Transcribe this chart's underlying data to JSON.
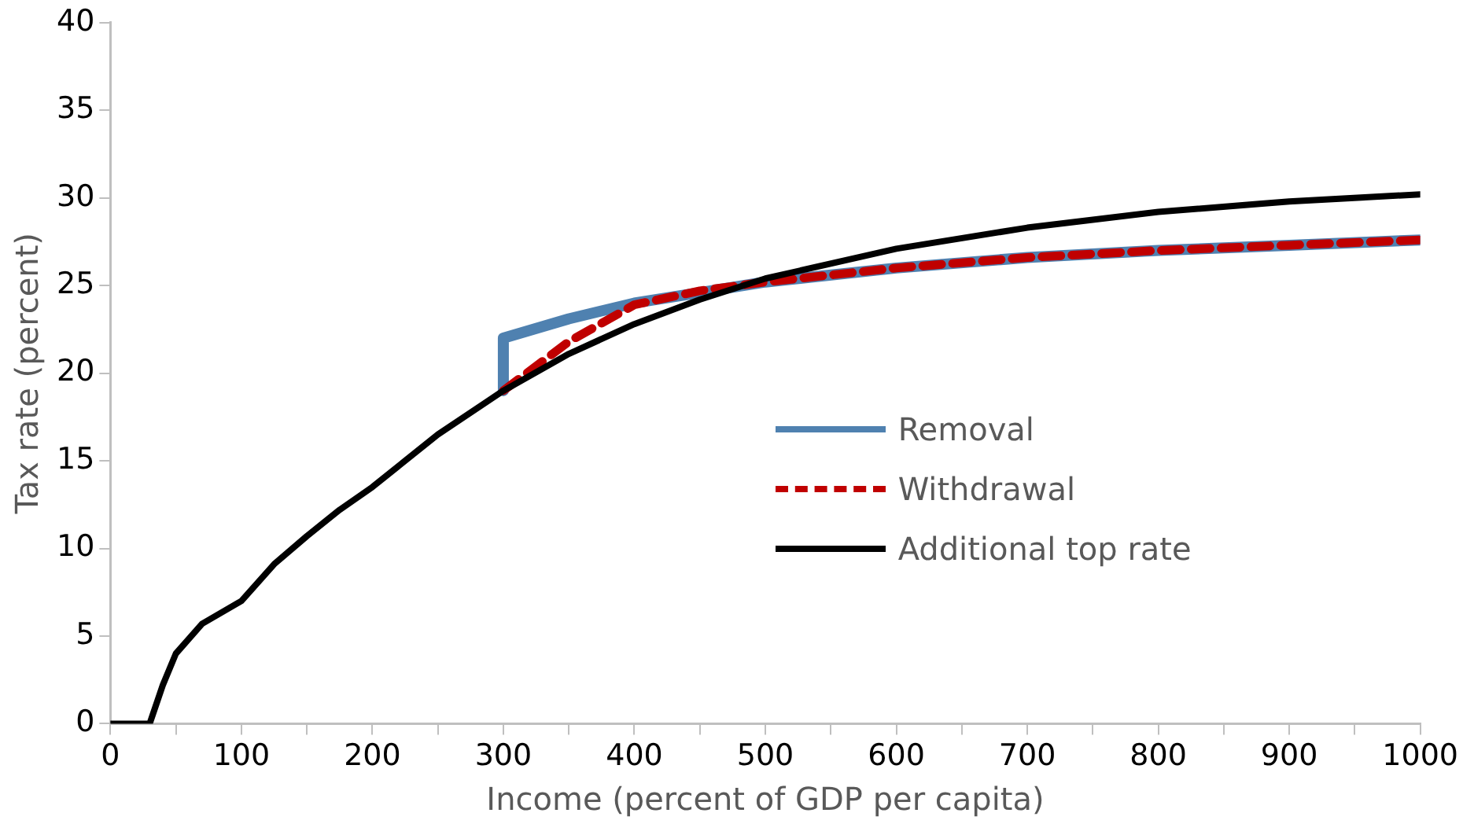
{
  "chart_data": {
    "type": "line",
    "xlabel": "Income (percent of GDP per capita)",
    "ylabel": "Tax rate (percent)",
    "xlim": [
      0,
      1000
    ],
    "xticks": [
      0,
      {
        "value": 50,
        "label": null
      },
      100,
      {
        "value": 150,
        "label": null
      },
      200,
      {
        "value": 250,
        "label": null
      },
      300,
      {
        "value": 350,
        "label": null
      },
      400,
      {
        "value": 450,
        "label": null
      },
      500,
      {
        "value": 550,
        "label": null
      },
      600,
      {
        "value": 650,
        "label": null
      },
      700,
      {
        "value": 750,
        "label": null
      },
      800,
      {
        "value": 850,
        "label": null
      },
      900,
      {
        "value": 950,
        "label": null
      },
      1000
    ],
    "ylim": [
      0,
      40
    ],
    "yticks": [
      0,
      5,
      10,
      15,
      20,
      25,
      30,
      35,
      40
    ],
    "grid": false,
    "legend": "right",
    "marker": "none",
    "series": [
      {
        "name": "Removal",
        "color": "#4f81b0",
        "line_style": "solid",
        "x": [
          300,
          300,
          350,
          400,
          450,
          500,
          600,
          700,
          800,
          900,
          1000
        ],
        "values": [
          19,
          22,
          23.1,
          24,
          24.6,
          25.2,
          26,
          26.6,
          27,
          27.3,
          27.6
        ]
      },
      {
        "name": "Withdrawal",
        "color": "#c00000",
        "line_style": "dashed",
        "x": [
          300,
          350,
          400,
          450,
          500,
          600,
          700,
          800,
          900,
          1000
        ],
        "values": [
          19,
          21.8,
          23.9,
          24.7,
          25.2,
          26,
          26.6,
          27,
          27.3,
          27.6
        ]
      },
      {
        "name": "Additional top rate",
        "color": "#000000",
        "line_style": "solid",
        "x": [
          0,
          30,
          40,
          50,
          70,
          100,
          125,
          150,
          175,
          200,
          250,
          300,
          350,
          400,
          450,
          500,
          600,
          700,
          800,
          900,
          1000
        ],
        "values": [
          0,
          0,
          2.2,
          4,
          5.7,
          7,
          9.1,
          10.7,
          12.2,
          13.5,
          16.5,
          19,
          21.1,
          22.8,
          24.2,
          25.4,
          27.1,
          28.3,
          29.2,
          29.8,
          30.2
        ]
      }
    ]
  }
}
